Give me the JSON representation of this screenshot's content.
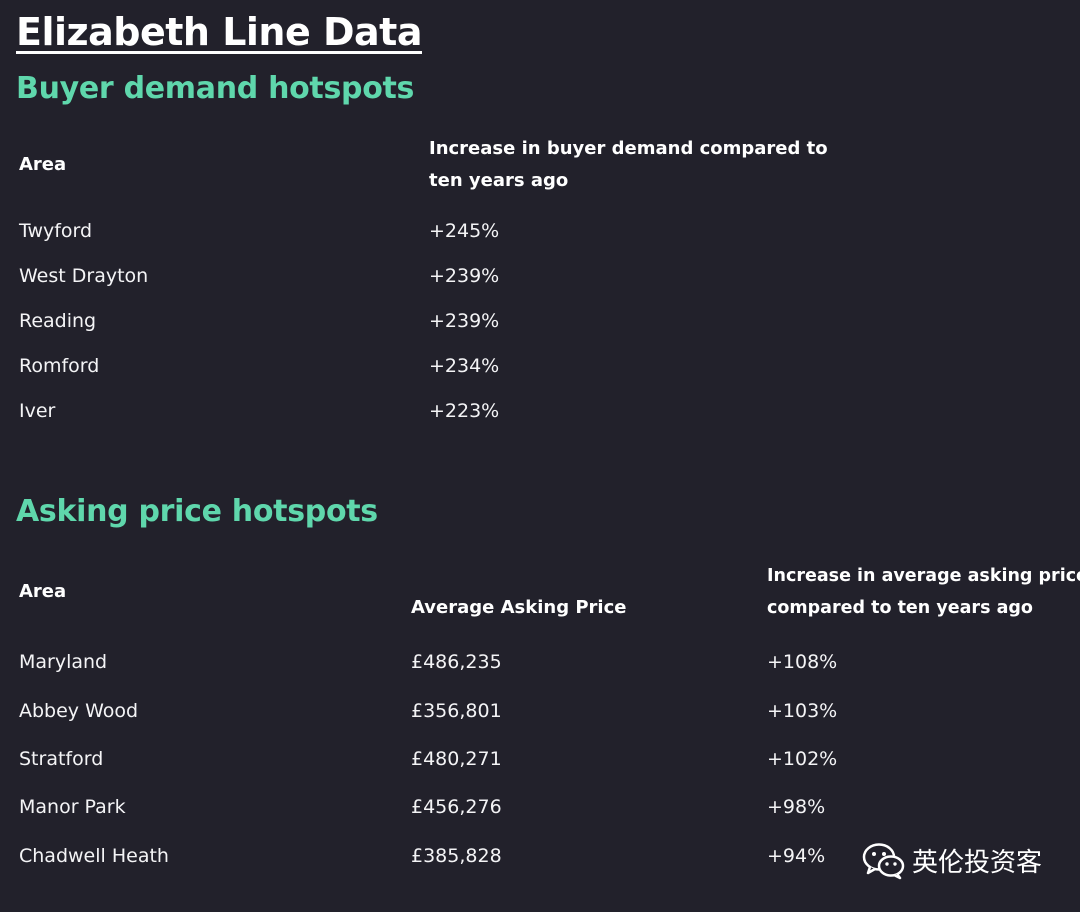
{
  "title": "Elizabeth Line Data",
  "buyer_demand": {
    "heading": "Buyer demand hotspots",
    "col_area": "Area",
    "col_increase_line1": "Increase in buyer demand compared to",
    "col_increase_line2": "ten years ago",
    "rows": [
      {
        "area": "Twyford",
        "increase": "+245%"
      },
      {
        "area": "West Drayton",
        "increase": "+239%"
      },
      {
        "area": "Reading",
        "increase": "+239%"
      },
      {
        "area": "Romford",
        "increase": "+234%"
      },
      {
        "area": "Iver",
        "increase": "+223%"
      }
    ]
  },
  "asking_price": {
    "heading": "Asking price hotspots",
    "col_area": "Area",
    "col_price": "Average Asking Price",
    "col_increase_line1": "Increase in average asking price",
    "col_increase_line2": "compared to ten years ago",
    "rows": [
      {
        "area": "Maryland",
        "price": "£486,235",
        "increase": "+108%"
      },
      {
        "area": "Abbey Wood",
        "price": "£356,801",
        "increase": "+103%"
      },
      {
        "area": "Stratford",
        "price": "£480,271",
        "increase": "+102%"
      },
      {
        "area": "Manor Park",
        "price": "£456,276",
        "increase": "+98%"
      },
      {
        "area": "Chadwell Heath",
        "price": "£385,828",
        "increase": "+94%"
      }
    ]
  },
  "watermark": {
    "icon": "wechat-icon",
    "text": "英伦投资客"
  }
}
